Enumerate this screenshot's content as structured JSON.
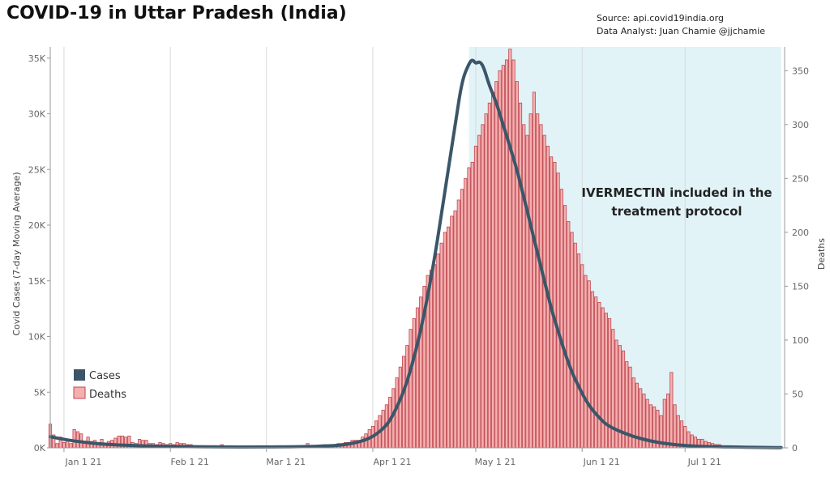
{
  "title": "COVID-19 in Uttar Pradesh (India)",
  "source_line": "Source: api.covid19india.org",
  "analyst_line": "Data Analyst:  Juan Chamie @jjchamie",
  "chart_data": {
    "type": "bar+line",
    "x_start": "Dec 28 20",
    "x_end": "Jul 29 21",
    "x_ticks": [
      {
        "label": "Jan 1 21",
        "day": 4
      },
      {
        "label": "Feb 1 21",
        "day": 35
      },
      {
        "label": "Mar 1 21",
        "day": 63
      },
      {
        "label": "Apr 1 21",
        "day": 94
      },
      {
        "label": "May 1 21",
        "day": 124
      },
      {
        "label": "Jun 1 21",
        "day": 155
      },
      {
        "label": "Jul 1 21",
        "day": 185
      }
    ],
    "y_left": {
      "label": "Covid Cases (7-day Moving Average)",
      "min": 0,
      "max": 36000,
      "ticks": [
        {
          "v": 0,
          "label": "0K"
        },
        {
          "v": 5000,
          "label": "5K"
        },
        {
          "v": 10000,
          "label": "10K"
        },
        {
          "v": 15000,
          "label": "15K"
        },
        {
          "v": 20000,
          "label": "20K"
        },
        {
          "v": 25000,
          "label": "25K"
        },
        {
          "v": 30000,
          "label": "30K"
        },
        {
          "v": 35000,
          "label": "35K"
        }
      ]
    },
    "y_right": {
      "label": "Deaths",
      "min": 0,
      "max": 372,
      "ticks": [
        {
          "v": 0,
          "label": "0"
        },
        {
          "v": 50,
          "label": "50"
        },
        {
          "v": 100,
          "label": "100"
        },
        {
          "v": 150,
          "label": "150"
        },
        {
          "v": 200,
          "label": "200"
        },
        {
          "v": 250,
          "label": "250"
        },
        {
          "v": 300,
          "label": "300"
        },
        {
          "v": 350,
          "label": "350"
        }
      ]
    },
    "shaded_region": {
      "start_day": 122,
      "end_day": 213,
      "color": "#e1f3f7"
    },
    "annotation": [
      "IVERMECTIN included in the",
      "treatment protocol"
    ],
    "series": [
      {
        "name": "Cases",
        "kind": "line",
        "axis": "left",
        "color": "#3b5668",
        "points": [
          [
            0,
            1000
          ],
          [
            5,
            700
          ],
          [
            10,
            500
          ],
          [
            15,
            350
          ],
          [
            20,
            250
          ],
          [
            25,
            200
          ],
          [
            30,
            150
          ],
          [
            40,
            100
          ],
          [
            50,
            80
          ],
          [
            60,
            70
          ],
          [
            70,
            90
          ],
          [
            80,
            150
          ],
          [
            85,
            250
          ],
          [
            88,
            400
          ],
          [
            92,
            700
          ],
          [
            95,
            1200
          ],
          [
            98,
            2000
          ],
          [
            100,
            3000
          ],
          [
            103,
            5000
          ],
          [
            106,
            8000
          ],
          [
            109,
            12000
          ],
          [
            112,
            17000
          ],
          [
            115,
            23000
          ],
          [
            118,
            29000
          ],
          [
            120,
            33000
          ],
          [
            122,
            34500
          ],
          [
            123,
            34900
          ],
          [
            124,
            34500
          ],
          [
            125,
            34700
          ],
          [
            126,
            34400
          ],
          [
            127,
            33500
          ],
          [
            128,
            32500
          ],
          [
            130,
            31000
          ],
          [
            132,
            29000
          ],
          [
            134,
            27000
          ],
          [
            136,
            25000
          ],
          [
            138,
            22500
          ],
          [
            140,
            20000
          ],
          [
            142,
            17500
          ],
          [
            144,
            15000
          ],
          [
            146,
            12500
          ],
          [
            148,
            10500
          ],
          [
            150,
            8500
          ],
          [
            152,
            6800
          ],
          [
            154,
            5500
          ],
          [
            156,
            4300
          ],
          [
            158,
            3400
          ],
          [
            160,
            2700
          ],
          [
            162,
            2100
          ],
          [
            165,
            1600
          ],
          [
            170,
            1000
          ],
          [
            175,
            600
          ],
          [
            180,
            350
          ],
          [
            185,
            200
          ],
          [
            190,
            130
          ],
          [
            195,
            90
          ],
          [
            200,
            70
          ],
          [
            205,
            50
          ],
          [
            210,
            30
          ],
          [
            213,
            20
          ]
        ]
      },
      {
        "name": "Deaths",
        "kind": "bar",
        "axis": "right",
        "fill": "#f4b0b0",
        "stroke": "#c0464f",
        "start_day": 0,
        "values": [
          22,
          12,
          4,
          10,
          5,
          8,
          4,
          17,
          15,
          13,
          6,
          10,
          6,
          7,
          4,
          8,
          4,
          6,
          7,
          9,
          11,
          11,
          10,
          11,
          5,
          4,
          8,
          7,
          7,
          4,
          4,
          3,
          5,
          4,
          3,
          4,
          3,
          5,
          4,
          4,
          3,
          3,
          2,
          2,
          2,
          2,
          2,
          2,
          2,
          2,
          3,
          2,
          2,
          2,
          1,
          1,
          1,
          1,
          2,
          1,
          1,
          2,
          1,
          1,
          1,
          1,
          2,
          2,
          1,
          2,
          2,
          1,
          1,
          1,
          1,
          4,
          1,
          1,
          2,
          1,
          3,
          2,
          2,
          3,
          4,
          4,
          5,
          5,
          7,
          7,
          7,
          10,
          13,
          17,
          20,
          25,
          30,
          35,
          40,
          47,
          55,
          65,
          75,
          85,
          95,
          110,
          120,
          130,
          140,
          150,
          160,
          165,
          170,
          180,
          190,
          200,
          205,
          215,
          220,
          230,
          240,
          250,
          260,
          265,
          280,
          290,
          300,
          310,
          320,
          330,
          340,
          350,
          355,
          360,
          370,
          360,
          340,
          320,
          300,
          290,
          310,
          330,
          310,
          300,
          290,
          280,
          270,
          265,
          255,
          240,
          225,
          210,
          200,
          190,
          180,
          170,
          160,
          155,
          145,
          140,
          135,
          130,
          125,
          120,
          110,
          100,
          95,
          90,
          80,
          75,
          65,
          60,
          55,
          50,
          45,
          40,
          38,
          35,
          30,
          45,
          50,
          70,
          40,
          30,
          25,
          20,
          15,
          12,
          10,
          8,
          8,
          6,
          5,
          4,
          3,
          3,
          2,
          2,
          2,
          1
        ]
      }
    ]
  }
}
